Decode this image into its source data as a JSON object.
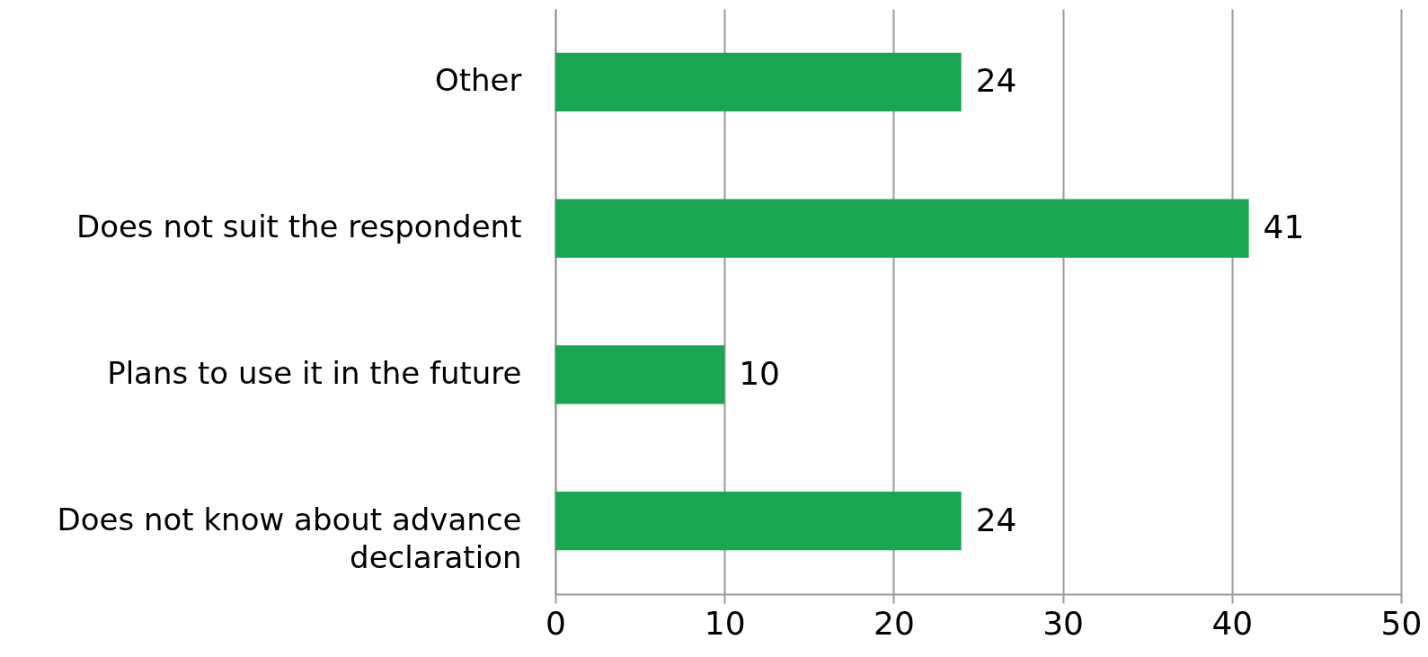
{
  "chart_data": {
    "type": "bar",
    "orientation": "horizontal",
    "categories": [
      "Other",
      "Does not suit the respondent",
      "Plans to use it in the future",
      "Does not know about advance declaration"
    ],
    "values": [
      24,
      41,
      10,
      24
    ],
    "color": "#1aa552",
    "xlim": [
      0,
      50
    ],
    "xticks": [
      0,
      10,
      20,
      30,
      40,
      50
    ],
    "grid": "x",
    "data_labels": true
  }
}
